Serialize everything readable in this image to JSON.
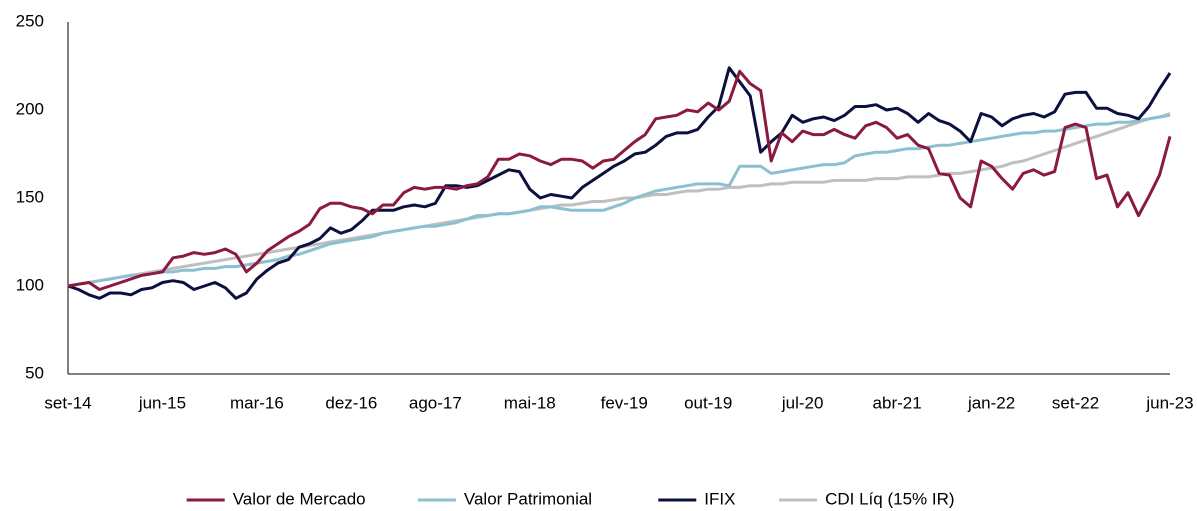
{
  "chart_data": {
    "type": "line",
    "categories": [
      "set-14",
      null,
      null,
      null,
      null,
      null,
      null,
      null,
      null,
      "jun-15",
      null,
      null,
      null,
      null,
      null,
      null,
      null,
      null,
      "mar-16",
      null,
      null,
      null,
      null,
      null,
      null,
      null,
      null,
      "dez-16",
      null,
      null,
      null,
      null,
      null,
      null,
      null,
      "ago-17",
      null,
      null,
      null,
      null,
      null,
      null,
      null,
      null,
      "mai-18",
      null,
      null,
      null,
      null,
      null,
      null,
      null,
      null,
      "fev-19",
      null,
      null,
      null,
      null,
      null,
      null,
      null,
      "out-19",
      null,
      null,
      null,
      null,
      null,
      null,
      null,
      null,
      "jul-20",
      null,
      null,
      null,
      null,
      null,
      null,
      null,
      null,
      "abr-21",
      null,
      null,
      null,
      null,
      null,
      null,
      null,
      null,
      "jan-22",
      null,
      null,
      null,
      null,
      null,
      null,
      null,
      "set-22",
      null,
      null,
      null,
      null,
      null,
      null,
      null,
      null,
      "jun-23"
    ],
    "series": [
      {
        "name": "Valor de Mercado",
        "color": "#8b1a3f",
        "values": [
          100,
          101,
          102,
          98,
          100,
          102,
          104,
          106,
          107,
          108,
          116,
          117,
          119,
          118,
          119,
          121,
          118,
          108,
          113,
          120,
          124,
          128,
          131,
          135,
          144,
          147,
          147,
          145,
          144,
          141,
          146,
          146,
          153,
          156,
          155,
          156,
          156,
          155,
          157,
          158,
          162,
          172,
          172,
          175,
          174,
          171,
          169,
          172,
          172,
          171,
          167,
          171,
          172,
          177,
          182,
          186,
          195,
          196,
          197,
          200,
          199,
          204,
          200,
          205,
          222,
          215,
          211,
          171,
          187,
          182,
          188,
          186,
          186,
          189,
          186,
          184,
          191,
          193,
          190,
          184,
          186,
          180,
          178,
          164,
          163,
          150,
          145,
          171,
          168,
          161,
          155,
          164,
          166,
          163,
          165,
          190,
          192,
          190,
          161,
          163,
          145,
          153,
          140,
          151,
          163,
          185
        ]
      },
      {
        "name": "Valor Patrimonial",
        "color": "#8cbfcf",
        "values": [
          100,
          101,
          102,
          103,
          104,
          105,
          106,
          106,
          107,
          108,
          108,
          109,
          109,
          110,
          110,
          111,
          111,
          112,
          113,
          114,
          115,
          117,
          118,
          120,
          122,
          124,
          125,
          126,
          127,
          128,
          130,
          131,
          132,
          133,
          134,
          134,
          135,
          136,
          138,
          140,
          140,
          141,
          141,
          142,
          143,
          145,
          145,
          144,
          143,
          143,
          143,
          143,
          145,
          147,
          150,
          152,
          154,
          155,
          156,
          157,
          158,
          158,
          158,
          157,
          168,
          168,
          168,
          164,
          165,
          166,
          167,
          168,
          169,
          169,
          170,
          174,
          175,
          176,
          176,
          177,
          178,
          178,
          179,
          180,
          180,
          181,
          182,
          183,
          184,
          185,
          186,
          187,
          187,
          188,
          188,
          189,
          190,
          191,
          192,
          192,
          193,
          193,
          194,
          195,
          196,
          197
        ]
      },
      {
        "name": "IFIX",
        "color": "#0b1040",
        "values": [
          100,
          98,
          95,
          93,
          96,
          96,
          95,
          98,
          99,
          102,
          103,
          102,
          98,
          100,
          102,
          99,
          93,
          96,
          104,
          109,
          113,
          115,
          122,
          124,
          127,
          133,
          130,
          132,
          137,
          143,
          143,
          143,
          145,
          146,
          145,
          147,
          157,
          157,
          156,
          157,
          160,
          163,
          166,
          165,
          155,
          150,
          152,
          151,
          150,
          156,
          160,
          164,
          168,
          171,
          175,
          176,
          180,
          185,
          187,
          187,
          189,
          196,
          202,
          224,
          216,
          208,
          176,
          182,
          187,
          197,
          193,
          195,
          196,
          194,
          197,
          202,
          202,
          203,
          200,
          201,
          198,
          193,
          198,
          194,
          192,
          188,
          182,
          198,
          196,
          191,
          195,
          197,
          198,
          196,
          199,
          209,
          210,
          210,
          201,
          201,
          198,
          197,
          195,
          202,
          212,
          221
        ]
      },
      {
        "name": "CDI Líq (15% IR)",
        "color": "#bfbfbf",
        "values": [
          100,
          101,
          102,
          103,
          104,
          105,
          106,
          107,
          108,
          109,
          110,
          111,
          112,
          113,
          114,
          115,
          116,
          117,
          118,
          119,
          120,
          121,
          122,
          123,
          124,
          125,
          126,
          127,
          128,
          129,
          130,
          131,
          132,
          133,
          134,
          135,
          136,
          137,
          138,
          139,
          140,
          141,
          141,
          142,
          143,
          144,
          145,
          146,
          146,
          147,
          148,
          148,
          149,
          150,
          150,
          151,
          152,
          152,
          153,
          154,
          154,
          155,
          155,
          156,
          156,
          157,
          157,
          158,
          158,
          159,
          159,
          159,
          159,
          160,
          160,
          160,
          160,
          161,
          161,
          161,
          162,
          162,
          162,
          163,
          164,
          164,
          165,
          166,
          167,
          168,
          170,
          171,
          173,
          175,
          177,
          179,
          181,
          183,
          185,
          187,
          189,
          191,
          193,
          195,
          196,
          198
        ]
      }
    ],
    "ylim": [
      50,
      250
    ],
    "yticks": [
      50,
      100,
      150,
      200,
      250
    ],
    "grid": false,
    "legend": "bottom"
  }
}
